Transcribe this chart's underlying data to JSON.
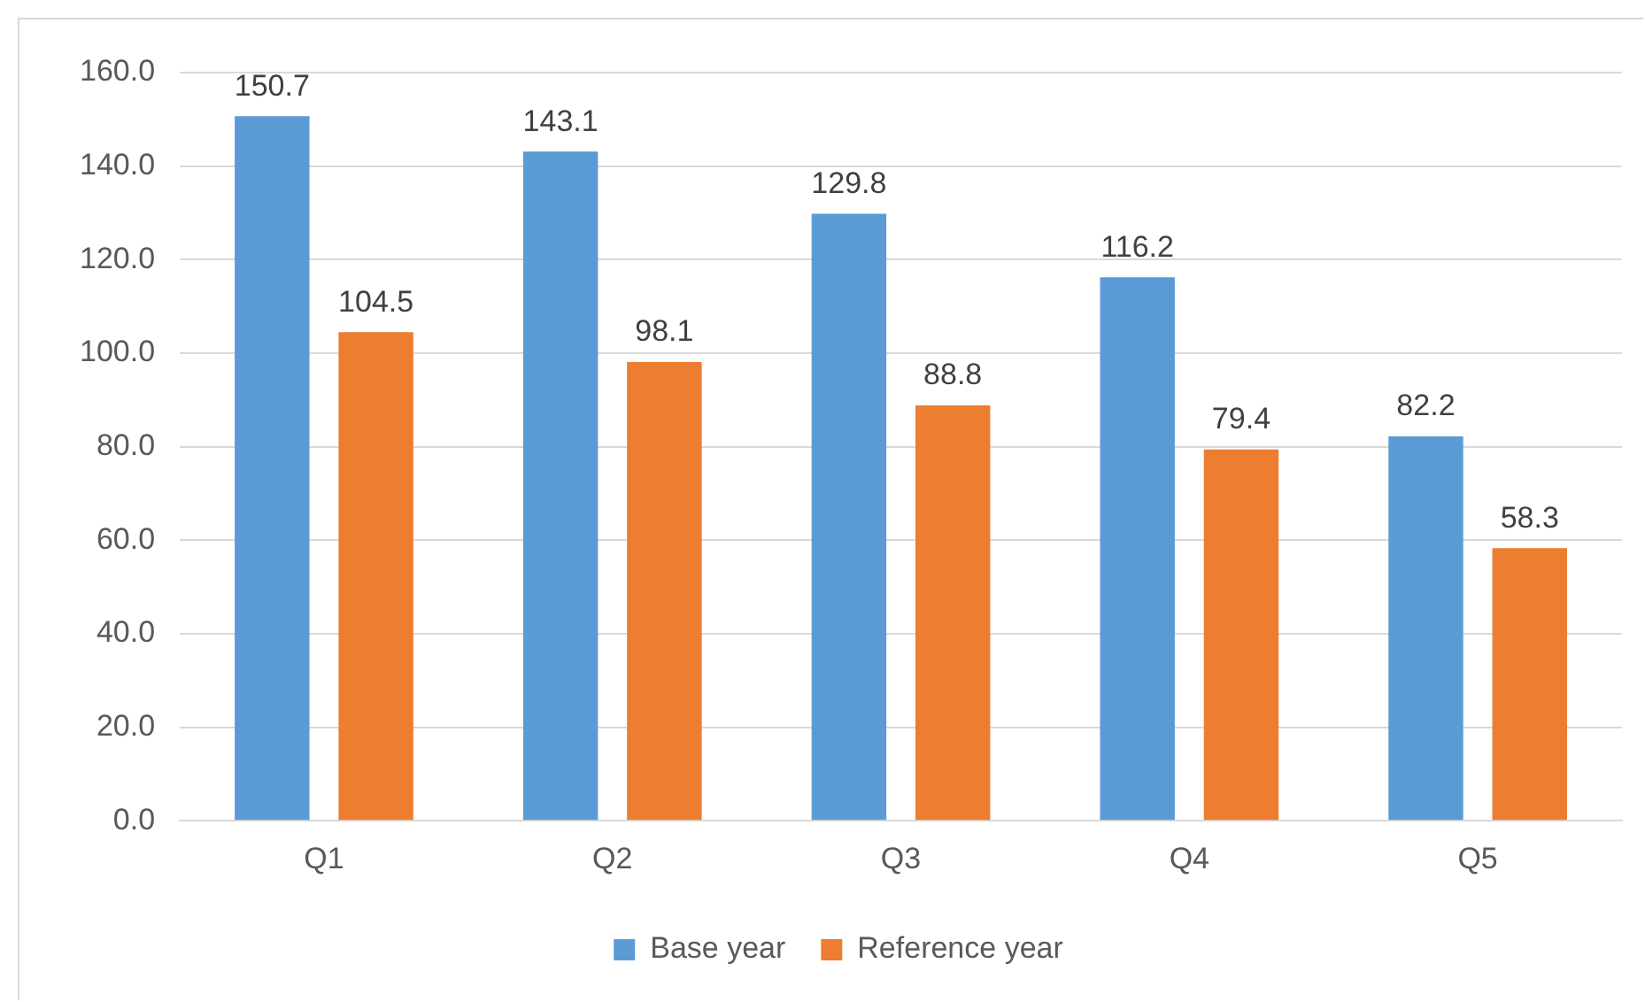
{
  "chart_data": {
    "type": "bar",
    "categories": [
      "Q1",
      "Q2",
      "Q3",
      "Q4",
      "Q5"
    ],
    "series": [
      {
        "name": "Base year",
        "color": "#5b9bd5",
        "values": [
          150.7,
          143.1,
          129.8,
          116.2,
          82.2
        ]
      },
      {
        "name": "Reference year",
        "color": "#ed7d31",
        "values": [
          104.5,
          98.1,
          88.8,
          79.4,
          58.3
        ]
      }
    ],
    "ylim": [
      0,
      160
    ],
    "yticks": [
      {
        "value": 0,
        "label": "0.0"
      },
      {
        "value": 20,
        "label": "20.0"
      },
      {
        "value": 40,
        "label": "40.0"
      },
      {
        "value": 60,
        "label": "60.0"
      },
      {
        "value": 80,
        "label": "80.0"
      },
      {
        "value": 100,
        "label": "100.0"
      },
      {
        "value": 120,
        "label": "120.0"
      },
      {
        "value": 140,
        "label": "140.0"
      },
      {
        "value": 160,
        "label": "160.0"
      }
    ],
    "grid": "y",
    "legend": "bottom",
    "data_labels": true
  }
}
